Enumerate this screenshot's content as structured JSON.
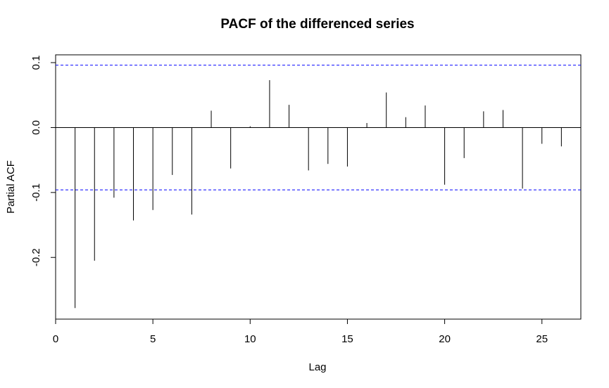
{
  "chart_data": {
    "type": "bar",
    "title": "PACF of the differenced series",
    "xlabel": "Lag",
    "ylabel": "Partial ACF",
    "xlim": [
      0,
      27
    ],
    "ylim": [
      -0.295,
      0.112
    ],
    "x_ticks": [
      0,
      5,
      10,
      15,
      20,
      25
    ],
    "y_ticks": [
      -0.2,
      -0.1,
      0.0,
      0.1
    ],
    "x_tick_labels": [
      "0",
      "5",
      "10",
      "15",
      "20",
      "25"
    ],
    "y_tick_labels": [
      "-0.2",
      "-0.1",
      "0.0",
      "0.1"
    ],
    "confidence_band": 0.096,
    "lags": [
      1,
      2,
      3,
      4,
      5,
      6,
      7,
      8,
      9,
      10,
      11,
      12,
      13,
      14,
      15,
      16,
      17,
      18,
      19,
      20,
      21,
      22,
      23,
      24,
      25,
      26
    ],
    "values": [
      -0.278,
      -0.205,
      -0.108,
      -0.143,
      -0.127,
      -0.073,
      -0.134,
      0.026,
      -0.063,
      0.002,
      0.073,
      0.035,
      -0.066,
      -0.056,
      -0.06,
      0.007,
      0.054,
      0.016,
      0.034,
      -0.088,
      -0.047,
      0.025,
      0.027,
      -0.094,
      -0.025,
      -0.029
    ],
    "grid": false,
    "colors": {
      "bars": "#000000",
      "band": "#0000ff",
      "zero_line": "#000000"
    }
  }
}
